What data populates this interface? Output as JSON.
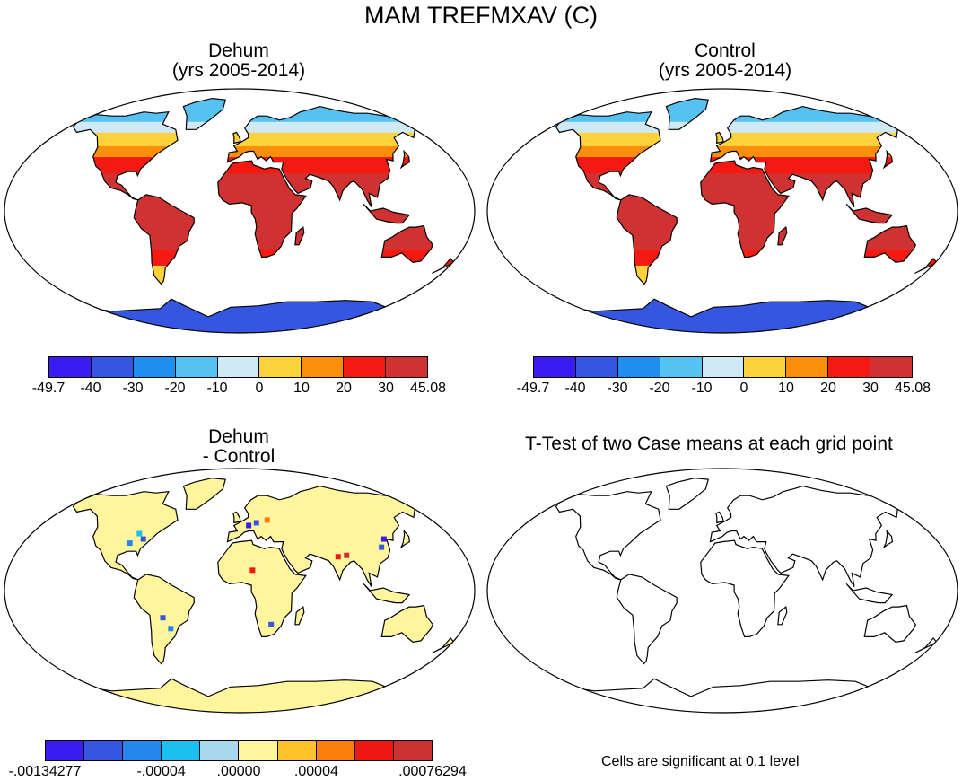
{
  "title": "MAM TREFMXAV (C)",
  "panels": {
    "dehum": {
      "title_line1": "Dehum",
      "title_line2": "(yrs 2005-2014)"
    },
    "control": {
      "title_line1": "Control",
      "title_line2": "(yrs 2005-2014)"
    },
    "diff": {
      "title_line1": "Dehum",
      "title_line2": "- Control"
    },
    "ttest": {
      "title": "T-Test of two Case means at each grid point",
      "note": "Cells are significant at 0.1 level"
    }
  },
  "colorbars": {
    "temperature": {
      "colors": [
        "#3a1cf0",
        "#3456e0",
        "#1f8ef0",
        "#56c2f2",
        "#cfe9f7",
        "#fdd23a",
        "#fb8f0c",
        "#f41a12",
        "#d03232"
      ],
      "labels": [
        "-49.7",
        "-40",
        "-30",
        "-20",
        "-10",
        "0",
        "10",
        "20",
        "30",
        "45.08"
      ]
    },
    "difference": {
      "colors": [
        "#3a1cf0",
        "#3456e0",
        "#2586ef",
        "#1cc0ef",
        "#a8d8f0",
        "#fff59c",
        "#fdc22a",
        "#fb7d0c",
        "#f01812",
        "#cd3232"
      ],
      "labels": [
        ".00134277",
        "-.00004",
        ".00000",
        ".00004",
        ".00076294"
      ],
      "label_positions": [
        0,
        3,
        5,
        7,
        10
      ],
      "first_label_prefix": "-"
    }
  }
}
